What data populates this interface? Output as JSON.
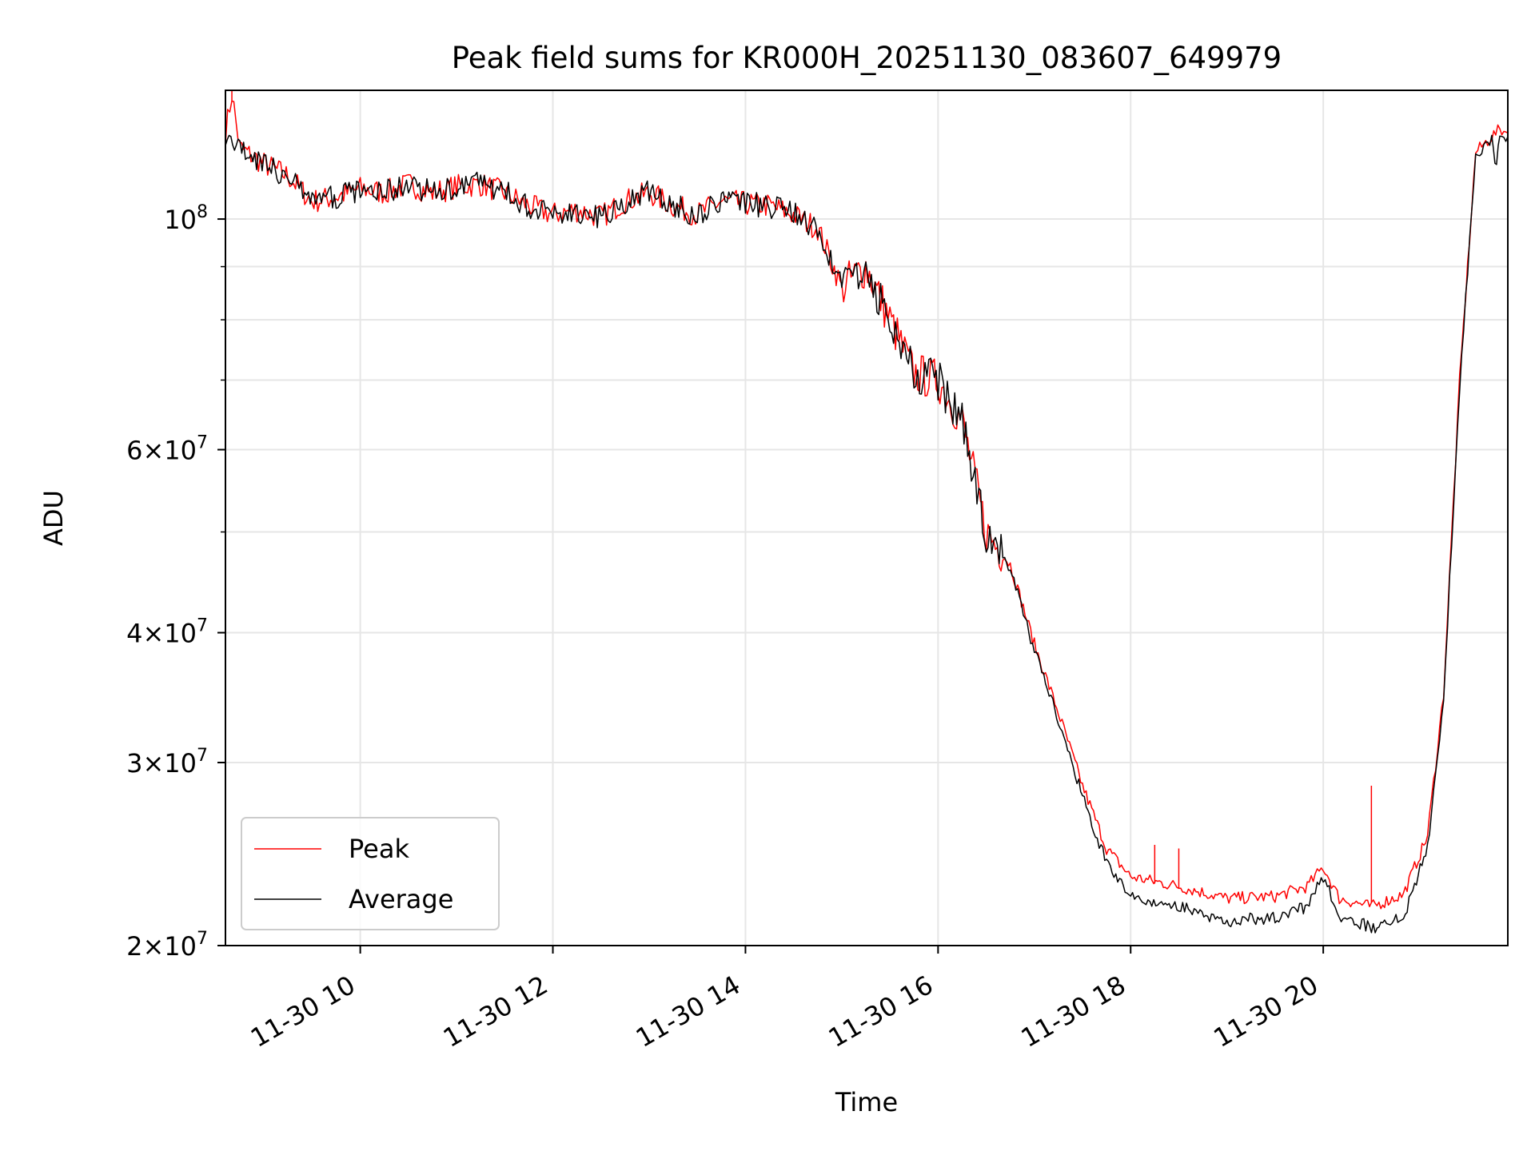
{
  "chart_data": {
    "type": "line",
    "title": "Peak field sums for KR000H_20251130_083607_649979",
    "xlabel": "Time",
    "ylabel": "ADU",
    "y_scale": "log",
    "ylim": [
      20000000,
      133000000
    ],
    "xlim": [
      "2025-11-30 08:36",
      "2025-11-30 21:55"
    ],
    "grid": true,
    "legend_position": "lower-left",
    "x_ticks": [
      {
        "t": "2025-11-30 10:00",
        "label": "11-30 10"
      },
      {
        "t": "2025-11-30 12:00",
        "label": "11-30 12"
      },
      {
        "t": "2025-11-30 14:00",
        "label": "11-30 14"
      },
      {
        "t": "2025-11-30 16:00",
        "label": "11-30 16"
      },
      {
        "t": "2025-11-30 18:00",
        "label": "11-30 18"
      },
      {
        "t": "2025-11-30 20:00",
        "label": "11-30 20"
      }
    ],
    "y_ticks": [
      {
        "value": 20000000,
        "mantissa": "2",
        "exp": "7"
      },
      {
        "value": 30000000,
        "mantissa": "3",
        "exp": "7"
      },
      {
        "value": 40000000,
        "mantissa": "4",
        "exp": "7"
      },
      {
        "value": 60000000,
        "mantissa": "6",
        "exp": "7"
      },
      {
        "value": 100000000,
        "mantissa": "",
        "exp": "8"
      }
    ],
    "y_minor_ticks": [
      50000000,
      70000000,
      80000000,
      90000000
    ],
    "series": [
      {
        "name": "Peak",
        "color": "#ff0000",
        "points": [
          [
            "2025-11-30 08:36",
            121000000
          ],
          [
            "2025-11-30 08:40",
            132000000
          ],
          [
            "2025-11-30 08:45",
            117000000
          ],
          [
            "2025-11-30 09:00",
            113000000
          ],
          [
            "2025-11-30 09:15",
            110000000
          ],
          [
            "2025-11-30 09:30",
            104000000
          ],
          [
            "2025-11-30 09:45",
            105000000
          ],
          [
            "2025-11-30 10:00",
            107000000
          ],
          [
            "2025-11-30 10:15",
            106000000
          ],
          [
            "2025-11-30 10:30",
            108000000
          ],
          [
            "2025-11-30 10:45",
            106000000
          ],
          [
            "2025-11-30 11:00",
            107500000
          ],
          [
            "2025-11-30 11:15",
            108000000
          ],
          [
            "2025-11-30 11:30",
            106000000
          ],
          [
            "2025-11-30 11:45",
            103000000
          ],
          [
            "2025-11-30 12:00",
            101000000
          ],
          [
            "2025-11-30 12:15",
            102000000
          ],
          [
            "2025-11-30 12:30",
            100500000
          ],
          [
            "2025-11-30 12:45",
            104000000
          ],
          [
            "2025-11-30 13:00",
            106000000
          ],
          [
            "2025-11-30 13:15",
            103000000
          ],
          [
            "2025-11-30 13:30",
            101000000
          ],
          [
            "2025-11-30 13:45",
            104000000
          ],
          [
            "2025-11-30 14:00",
            103500000
          ],
          [
            "2025-11-30 14:15",
            103000000
          ],
          [
            "2025-11-30 14:30",
            101000000
          ],
          [
            "2025-11-30 14:45",
            98000000
          ],
          [
            "2025-11-30 15:00",
            86000000
          ],
          [
            "2025-11-30 15:15",
            90000000
          ],
          [
            "2025-11-30 15:30",
            80000000
          ],
          [
            "2025-11-30 15:45",
            71000000
          ],
          [
            "2025-11-30 16:00",
            70000000
          ],
          [
            "2025-11-30 16:15",
            64000000
          ],
          [
            "2025-11-30 16:30",
            50000000
          ],
          [
            "2025-11-30 16:45",
            46500000
          ],
          [
            "2025-11-30 17:00",
            39000000
          ],
          [
            "2025-11-30 17:15",
            33500000
          ],
          [
            "2025-11-30 17:30",
            28500000
          ],
          [
            "2025-11-30 17:45",
            24800000
          ],
          [
            "2025-11-30 18:00",
            23300000
          ],
          [
            "2025-11-30 18:30",
            22800000
          ],
          [
            "2025-11-30 19:00",
            22200000
          ],
          [
            "2025-11-30 19:30",
            22300000
          ],
          [
            "2025-11-30 19:50",
            22800000
          ],
          [
            "2025-11-30 20:00",
            23800000
          ],
          [
            "2025-11-30 20:10",
            22200000
          ],
          [
            "2025-11-30 20:30",
            21800000
          ],
          [
            "2025-11-30 20:50",
            22400000
          ],
          [
            "2025-11-30 21:05",
            25500000
          ],
          [
            "2025-11-30 21:15",
            35000000
          ],
          [
            "2025-11-30 21:25",
            70000000
          ],
          [
            "2025-11-30 21:35",
            116000000
          ],
          [
            "2025-11-30 21:45",
            120000000
          ],
          [
            "2025-11-30 21:50",
            122000000
          ],
          [
            "2025-11-30 21:55",
            121000000
          ]
        ],
        "spikes": [
          [
            "2025-11-30 08:40",
            133000000
          ],
          [
            "2025-11-30 18:15",
            25000000
          ],
          [
            "2025-11-30 18:30",
            24800000
          ],
          [
            "2025-11-30 20:30",
            28500000
          ]
        ]
      },
      {
        "name": "Average",
        "color": "#000000",
        "points": [
          [
            "2025-11-30 08:36",
            121000000
          ],
          [
            "2025-11-30 08:45",
            117000000
          ],
          [
            "2025-11-30 09:00",
            113000000
          ],
          [
            "2025-11-30 09:15",
            110000000
          ],
          [
            "2025-11-30 09:30",
            104000000
          ],
          [
            "2025-11-30 09:45",
            105000000
          ],
          [
            "2025-11-30 10:00",
            107000000
          ],
          [
            "2025-11-30 10:15",
            106000000
          ],
          [
            "2025-11-30 10:30",
            108000000
          ],
          [
            "2025-11-30 10:45",
            106000000
          ],
          [
            "2025-11-30 11:00",
            107500000
          ],
          [
            "2025-11-30 11:15",
            108000000
          ],
          [
            "2025-11-30 11:30",
            106000000
          ],
          [
            "2025-11-30 11:45",
            103000000
          ],
          [
            "2025-11-30 12:00",
            101000000
          ],
          [
            "2025-11-30 12:15",
            102000000
          ],
          [
            "2025-11-30 12:30",
            100500000
          ],
          [
            "2025-11-30 12:45",
            104000000
          ],
          [
            "2025-11-30 13:00",
            106000000
          ],
          [
            "2025-11-30 13:15",
            103000000
          ],
          [
            "2025-11-30 13:30",
            101000000
          ],
          [
            "2025-11-30 13:45",
            104000000
          ],
          [
            "2025-11-30 14:00",
            103500000
          ],
          [
            "2025-11-30 14:15",
            103000000
          ],
          [
            "2025-11-30 14:30",
            101000000
          ],
          [
            "2025-11-30 14:45",
            98000000
          ],
          [
            "2025-11-30 15:00",
            86000000
          ],
          [
            "2025-11-30 15:15",
            90000000
          ],
          [
            "2025-11-30 15:30",
            80000000
          ],
          [
            "2025-11-30 15:45",
            71000000
          ],
          [
            "2025-11-30 16:00",
            70000000
          ],
          [
            "2025-11-30 16:15",
            64000000
          ],
          [
            "2025-11-30 16:30",
            50000000
          ],
          [
            "2025-11-30 16:45",
            46000000
          ],
          [
            "2025-11-30 17:00",
            38500000
          ],
          [
            "2025-11-30 17:15",
            33000000
          ],
          [
            "2025-11-30 17:30",
            27800000
          ],
          [
            "2025-11-30 17:45",
            24000000
          ],
          [
            "2025-11-30 18:00",
            22200000
          ],
          [
            "2025-11-30 18:30",
            21800000
          ],
          [
            "2025-11-30 19:00",
            21100000
          ],
          [
            "2025-11-30 19:30",
            21300000
          ],
          [
            "2025-11-30 19:50",
            21800000
          ],
          [
            "2025-11-30 20:00",
            23300000
          ],
          [
            "2025-11-30 20:10",
            21400000
          ],
          [
            "2025-11-30 20:30",
            20800000
          ],
          [
            "2025-11-30 20:50",
            21300000
          ],
          [
            "2025-11-30 21:05",
            24800000
          ],
          [
            "2025-11-30 21:15",
            34500000
          ],
          [
            "2025-11-30 21:25",
            69000000
          ],
          [
            "2025-11-30 21:35",
            115000000
          ],
          [
            "2025-11-30 21:45",
            119000000
          ],
          [
            "2025-11-30 21:48",
            112000000
          ],
          [
            "2025-11-30 21:50",
            121000000
          ],
          [
            "2025-11-30 21:55",
            120000000
          ]
        ]
      }
    ]
  }
}
